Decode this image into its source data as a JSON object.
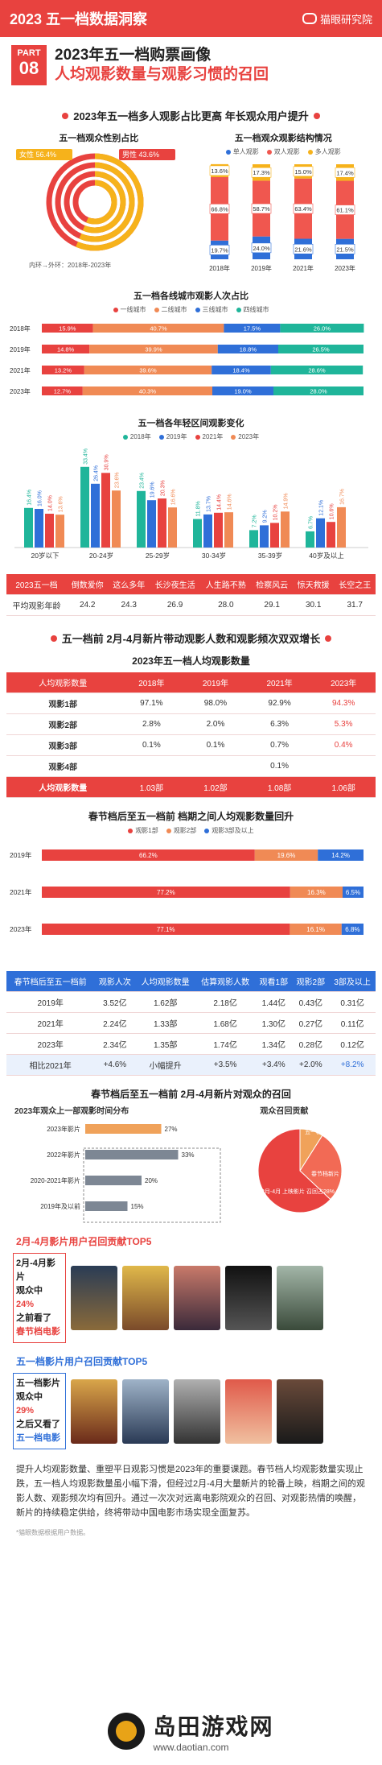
{
  "header": {
    "title": "2023 五一档数据洞察",
    "brand": "猫眼研究院"
  },
  "part": {
    "label": "PART",
    "num": "08",
    "title1": "2023年五一档购票画像",
    "title2": "人均观影数量与观影习惯的召回"
  },
  "s1": {
    "title": "2023年五一档多人观影占比更高 年长观众用户提升"
  },
  "gender": {
    "title": "五一档观众性别占比",
    "female": "女性 56.4%",
    "male": "男性 43.6%",
    "note": "内环→外环：2018年-2023年"
  },
  "struct": {
    "title": "五一档观众观影结构情况",
    "legend": [
      "单人观影",
      "双人观影",
      "多人观影"
    ]
  },
  "city": {
    "title": "五一档各线城市观影人次占比",
    "legend": [
      "一线城市",
      "二线城市",
      "三线城市",
      "四线城市"
    ]
  },
  "age": {
    "title": "五一档各年轻区间观影变化",
    "legend": [
      "2018年",
      "2019年",
      "2021年",
      "2023年"
    ]
  },
  "agefilm": {
    "header": [
      "2023五一档",
      "倒数爱你",
      "这么多年",
      "长沙夜生活",
      "人生路不熟",
      "检察风云",
      "惊天救援",
      "长空之王"
    ],
    "row_label": "平均观影年龄",
    "values": [
      "24.2",
      "24.3",
      "26.9",
      "28.0",
      "29.1",
      "30.1",
      "31.7"
    ]
  },
  "s2": {
    "title": "五一档前 2月-4月新片带动观影人数和观影频次双双增长"
  },
  "pertable": {
    "title": "2023年五一档人均观影数量",
    "header": [
      "人均观影数量",
      "2018年",
      "2019年",
      "2021年",
      "2023年"
    ],
    "rows": [
      [
        "观影1部",
        "97.1%",
        "98.0%",
        "92.9%",
        "94.3%"
      ],
      [
        "观影2部",
        "2.8%",
        "2.0%",
        "6.3%",
        "5.3%"
      ],
      [
        "观影3部",
        "0.1%",
        "0.1%",
        "0.7%",
        "0.4%"
      ],
      [
        "观影4部",
        "",
        "",
        "0.1%",
        ""
      ],
      [
        "人均观影数量",
        "1.03部",
        "1.02部",
        "1.08部",
        "1.06部"
      ]
    ]
  },
  "spring": {
    "title": "春节档后至五一档前 档期之间人均观影数量回升",
    "legend": [
      "观影1部",
      "观影2部",
      "观影3部及以上"
    ]
  },
  "bluetable": {
    "header": [
      "春节档后至五一档前",
      "观影人次",
      "人均观影数量",
      "估算观影人数",
      "观看1部",
      "观影2部",
      "3部及以上"
    ],
    "rows": [
      [
        "2019年",
        "3.52亿",
        "1.62部",
        "2.18亿",
        "1.44亿",
        "0.43亿",
        "0.31亿"
      ],
      [
        "2021年",
        "2.24亿",
        "1.33部",
        "1.68亿",
        "1.30亿",
        "0.27亿",
        "0.11亿"
      ],
      [
        "2023年",
        "2.34亿",
        "1.35部",
        "1.74亿",
        "1.34亿",
        "0.28亿",
        "0.12亿"
      ],
      [
        "相比2021年",
        "+4.6%",
        "小幅提升",
        "+3.5%",
        "+3.4%",
        "+2.0%",
        "+8.2%"
      ]
    ]
  },
  "recall": {
    "title": "春节档后至五一档前 2月-4月新片对观众的召回",
    "sub": "2023年观众上一部观影时间分布",
    "pie_title": "观众召回贡献",
    "pie_labels": [
      "五一档新片 召回占9%",
      "2月-4月 上映影片 召回占28%",
      "春节档新片 召回占63%"
    ]
  },
  "top5a": {
    "title": "2月-4月影片用户召回贡献TOP5",
    "l1": "2月-4月影片",
    "l2": "观众中",
    "l3": "24%",
    "l4": "之前看了",
    "l5": "春节档电影"
  },
  "top5b": {
    "title": "五一档影片用户召回贡献TOP5",
    "l1": "五一档影片",
    "l2": "观众中",
    "l3": "29%",
    "l4": "之后又看了",
    "l5": "五一档电影"
  },
  "footer": {
    "text": "提升人均观影数量、重塑平日观影习惯是2023年的重要课题。春节档人均观影数量实现止跌，五一档人均观影数量虽小幅下滑，但经过2月-4月大量新片的轮番上映，档期之间的观影人数、观影频次均有回升。通过一次次对远离电影院观众的召回、对观影热情的唤醒，新片的持续稳定供给，终将带动中国电影市场实现全面复苏。",
    "note": "*猫眼数据根据用户数据。"
  },
  "watermark": {
    "name": "岛田游戏网",
    "url": "www.daotian.com"
  },
  "colors": {
    "accent": "#e8423f",
    "blue": "#2f6fd8",
    "teal": "#1fb59a",
    "yellow": "#f6b21b",
    "gray": "#7d8794"
  },
  "chart_data": [
    {
      "type": "pie",
      "title": "五一档观众性别占比",
      "categories": [
        "女性",
        "男性"
      ],
      "values": [
        56.4,
        43.6
      ],
      "note": "内环→外环：2018年-2023年"
    },
    {
      "type": "bar",
      "title": "五一档观众观影结构情况",
      "categories": [
        "2018年",
        "2019年",
        "2021年",
        "2023年"
      ],
      "series": [
        {
          "name": "单人观影",
          "values": [
            19.7,
            24.0,
            21.6,
            21.5
          ]
        },
        {
          "name": "双人观影",
          "values": [
            66.8,
            58.7,
            63.4,
            61.1
          ]
        },
        {
          "name": "多人观影",
          "values": [
            13.6,
            17.3,
            15.0,
            17.4
          ]
        }
      ]
    },
    {
      "type": "bar",
      "title": "五一档各线城市观影人次占比",
      "categories": [
        "2018年",
        "2019年",
        "2021年",
        "2023年"
      ],
      "series": [
        {
          "name": "一线城市",
          "values": [
            15.9,
            14.8,
            13.2,
            12.7
          ]
        },
        {
          "name": "二线城市",
          "values": [
            40.7,
            39.9,
            39.6,
            40.3
          ]
        },
        {
          "name": "三线城市",
          "values": [
            17.5,
            18.8,
            18.4,
            19.0
          ]
        },
        {
          "name": "四线城市",
          "values": [
            26.0,
            26.5,
            28.6,
            28.0
          ]
        }
      ]
    },
    {
      "type": "bar",
      "title": "五一档各年轻区间观影变化",
      "categories": [
        "20岁以下",
        "20-24岁",
        "25-29岁",
        "30-34岁",
        "35-39岁",
        "40岁及以上"
      ],
      "series": [
        {
          "name": "2018年",
          "values": [
            16.4,
            33.4,
            23.4,
            11.8,
            7.2,
            6.7
          ]
        },
        {
          "name": "2019年",
          "values": [
            16.0,
            26.4,
            19.6,
            13.7,
            9.2,
            12.1
          ]
        },
        {
          "name": "2021年",
          "values": [
            14.0,
            30.9,
            20.3,
            14.4,
            10.2,
            10.6
          ]
        },
        {
          "name": "2023年",
          "values": [
            13.6,
            23.6,
            16.6,
            14.6,
            14.9,
            16.7
          ]
        }
      ]
    },
    {
      "type": "bar",
      "title": "春节档后至五一档前 档期之间人均观影数量回升",
      "categories": [
        "2019年",
        "2021年",
        "2023年"
      ],
      "series": [
        {
          "name": "观影1部",
          "values": [
            66.2,
            77.2,
            77.1
          ]
        },
        {
          "name": "观影2部",
          "values": [
            19.6,
            16.3,
            16.1
          ]
        },
        {
          "name": "观影3部及以上",
          "values": [
            14.2,
            6.5,
            6.8
          ]
        }
      ]
    },
    {
      "type": "bar",
      "title": "2023年观众上一部观影时间分布",
      "categories": [
        "2023年影片",
        "2022年影片",
        "2020-2021年影片",
        "2019年及以前"
      ],
      "values": [
        27,
        33,
        20,
        15
      ]
    }
  ]
}
